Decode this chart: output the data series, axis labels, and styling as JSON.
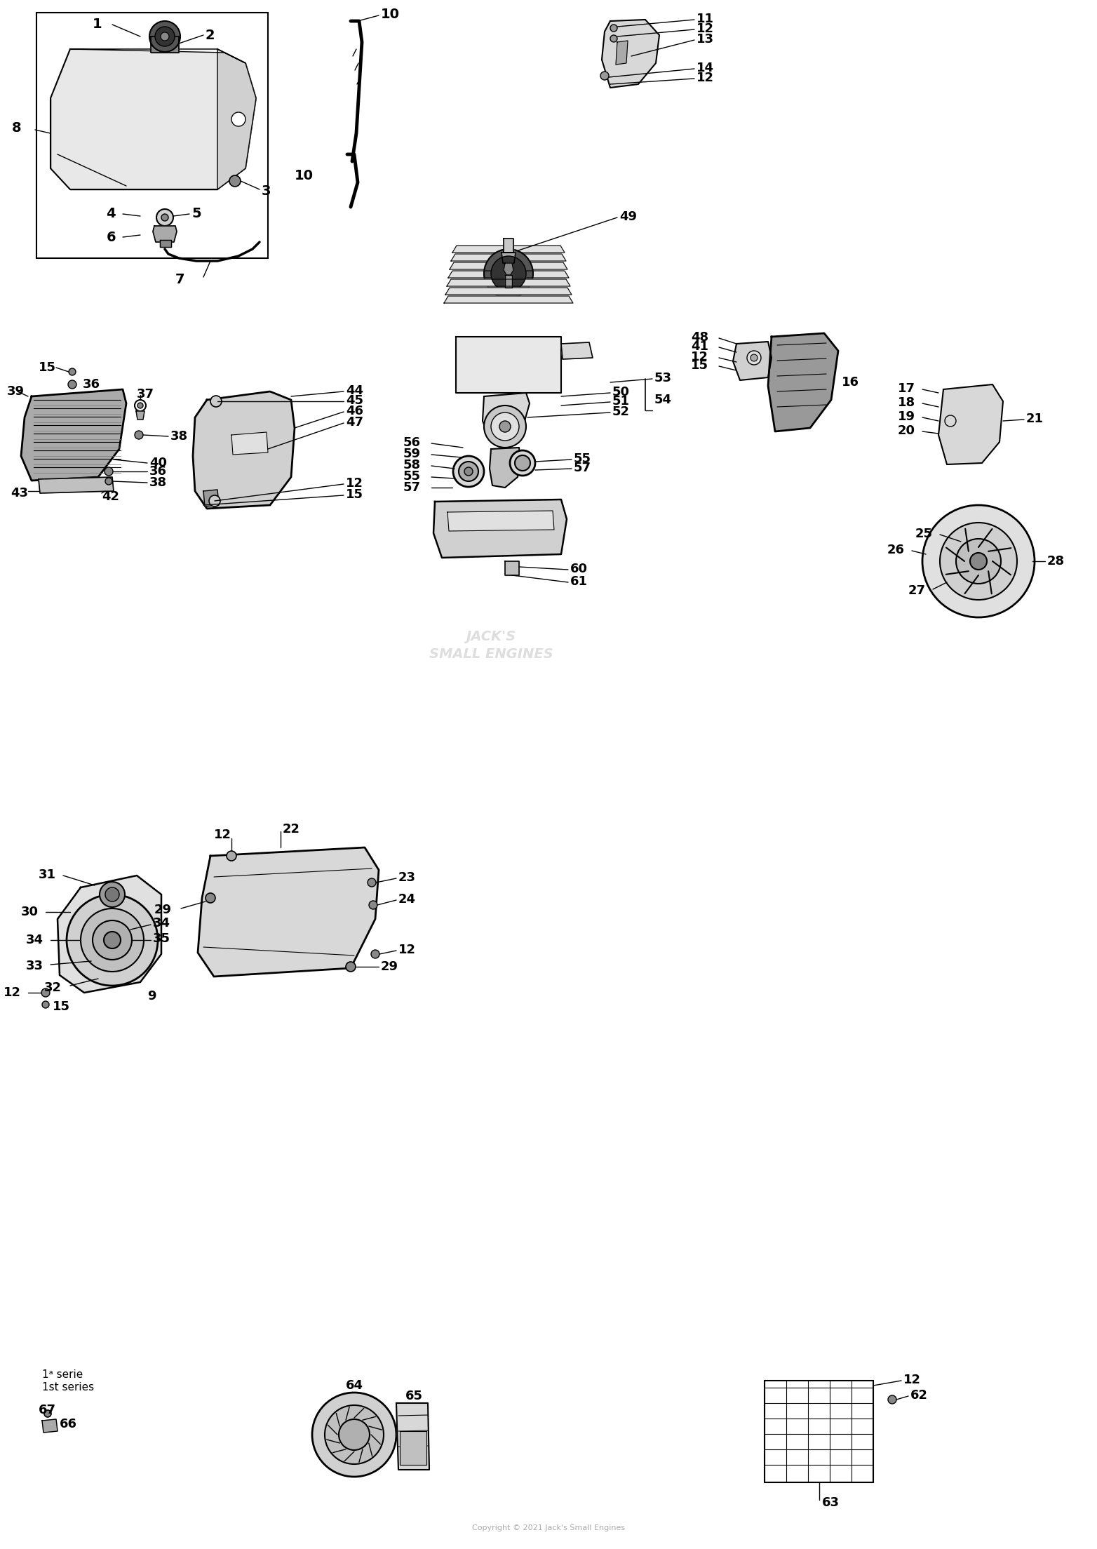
{
  "bg_color": "#ffffff",
  "fig_width": 15.64,
  "fig_height": 22.08,
  "dpi": 100,
  "watermark_text": "JACK'S\nSMALL ENGINES",
  "copyright_text": "Copyright © 2021 Jack's Small Engines"
}
